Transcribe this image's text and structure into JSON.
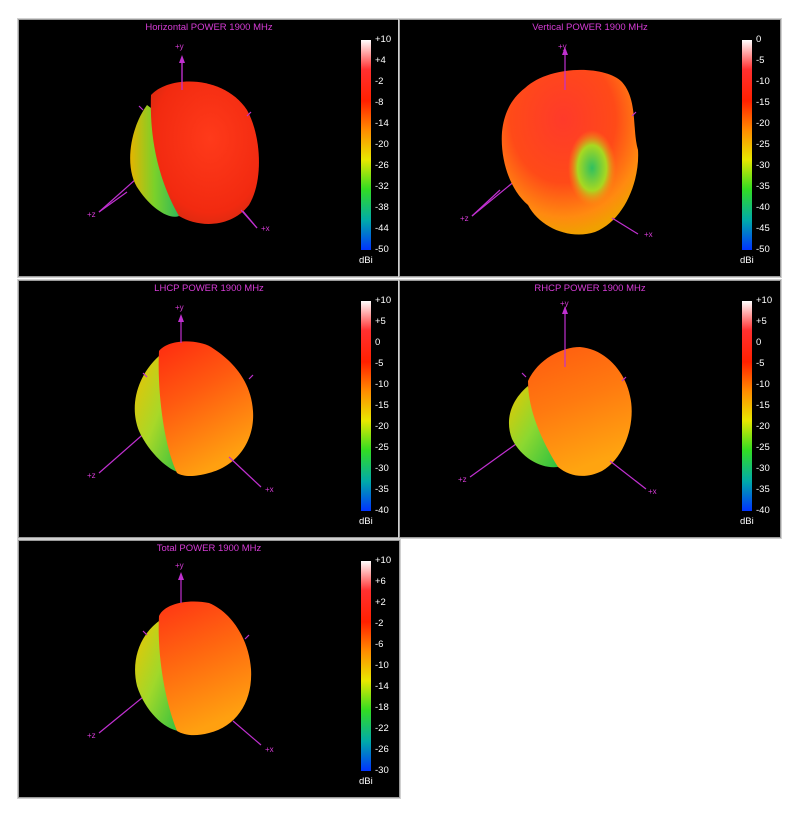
{
  "axes": {
    "y": "+y",
    "x": "+x",
    "z": "+z"
  },
  "colorbar": {
    "unit": "dBi",
    "colors": [
      "#ffffff",
      "#ff3030",
      "#ff2000",
      "#ff8c00",
      "#e8e800",
      "#33dd22",
      "#00aaaa",
      "#0033ff"
    ]
  },
  "panels": [
    {
      "title": "Horizontal POWER 1900  MHz",
      "ticks": [
        "+10",
        "+4",
        "-2",
        "-8",
        "-14",
        "-20",
        "-26",
        "-32",
        "-38",
        "-44",
        "-50"
      ]
    },
    {
      "title": "Vertical POWER 1900  MHz",
      "ticks": [
        "0",
        "-5",
        "-10",
        "-15",
        "-20",
        "-25",
        "-30",
        "-35",
        "-40",
        "-45",
        "-50"
      ]
    },
    {
      "title": "LHCP POWER 1900  MHz",
      "ticks": [
        "+10",
        "+5",
        "0",
        "-5",
        "-10",
        "-15",
        "-20",
        "-25",
        "-30",
        "-35",
        "-40"
      ]
    },
    {
      "title": "RHCP POWER 1900  MHz",
      "ticks": [
        "+10",
        "+5",
        "0",
        "-5",
        "-10",
        "-15",
        "-20",
        "-25",
        "-30",
        "-35",
        "-40"
      ]
    },
    {
      "title": "Total POWER 1900  MHz",
      "ticks": [
        "+10",
        "+6",
        "+2",
        "-2",
        "-6",
        "-10",
        "-14",
        "-18",
        "-22",
        "-26",
        "-30"
      ]
    }
  ]
}
